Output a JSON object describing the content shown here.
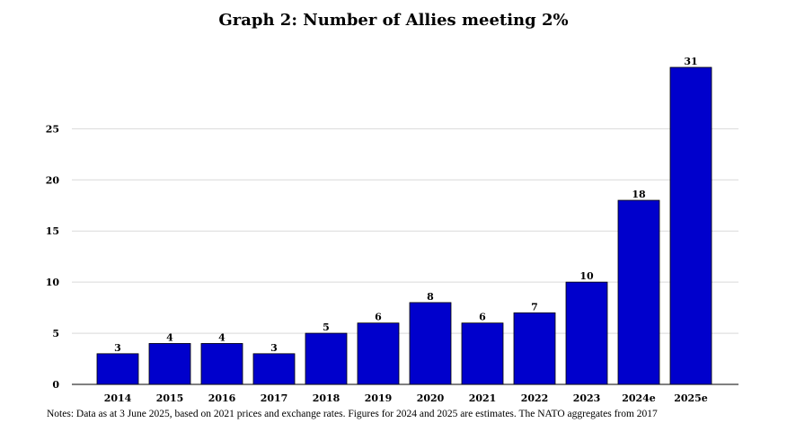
{
  "chart_data": {
    "type": "bar",
    "title": "Graph 2: Number of Allies meeting 2%",
    "categories": [
      "2014",
      "2015",
      "2016",
      "2017",
      "2018",
      "2019",
      "2020",
      "2021",
      "2022",
      "2023",
      "2024e",
      "2025e"
    ],
    "values": [
      3,
      4,
      4,
      3,
      5,
      6,
      8,
      6,
      7,
      10,
      18,
      31
    ],
    "xlabel": "",
    "ylabel": "",
    "ylim": [
      0,
      31
    ],
    "yticks": [
      0,
      5,
      10,
      15,
      20,
      25
    ],
    "grid": true,
    "bar_color": "#0000CC",
    "grid_color": "#D9D9D9",
    "data_labels": true
  },
  "notes": "Notes: Data as at 3 June 2025, based on 2021 prices and exchange rates. Figures for 2024 and 2025 are estimates. The NATO aggregates from 2017"
}
